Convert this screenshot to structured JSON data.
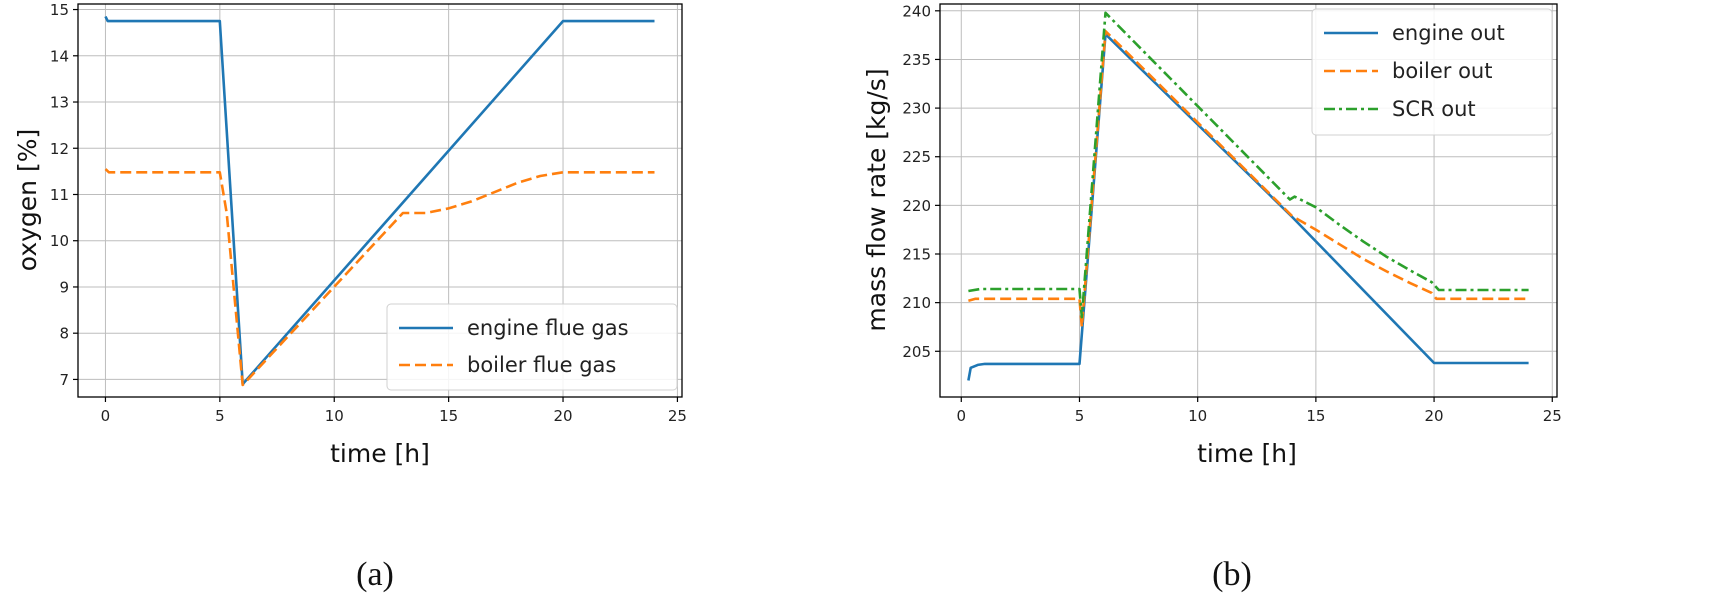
{
  "chart_data": [
    {
      "type": "line",
      "panel_label": "(a)",
      "xlabel": "time [h]",
      "ylabel": "oxygen [%]",
      "xlim": [
        -1.2,
        25.2
      ],
      "ylim": [
        6.62,
        15.12
      ],
      "xticks": [
        0,
        5,
        10,
        15,
        20,
        25
      ],
      "yticks": [
        7,
        8,
        9,
        10,
        11,
        12,
        13,
        14,
        15
      ],
      "grid": true,
      "legend": "lower-right",
      "series": [
        {
          "name": "engine flue gas",
          "style": "solid",
          "color": "#1f77b4",
          "points": [
            [
              0,
              14.85
            ],
            [
              0.1,
              14.75
            ],
            [
              5.0,
              14.75
            ],
            [
              6.0,
              6.9
            ],
            [
              20.0,
              14.75
            ],
            [
              24.0,
              14.75
            ]
          ]
        },
        {
          "name": "boiler flue gas",
          "style": "dashed",
          "color": "#ff7f0e",
          "points": [
            [
              0,
              11.55
            ],
            [
              0.15,
              11.48
            ],
            [
              5.0,
              11.48
            ],
            [
              5.3,
              10.6
            ],
            [
              6.0,
              6.88
            ],
            [
              13.0,
              10.6
            ],
            [
              14.0,
              10.6
            ],
            [
              15.0,
              10.7
            ],
            [
              16.0,
              10.85
            ],
            [
              17.0,
              11.05
            ],
            [
              18.0,
              11.25
            ],
            [
              19.0,
              11.4
            ],
            [
              20.0,
              11.48
            ],
            [
              24.0,
              11.48
            ]
          ]
        }
      ]
    },
    {
      "type": "line",
      "panel_label": "(b)",
      "xlabel": "time [h]",
      "ylabel": "mass flow rate [kg/s]",
      "xlim": [
        -0.9,
        25.2
      ],
      "ylim": [
        200.3,
        240.7
      ],
      "xticks": [
        0,
        5,
        10,
        15,
        20,
        25
      ],
      "yticks": [
        205,
        210,
        215,
        220,
        225,
        230,
        235,
        240
      ],
      "grid": true,
      "legend": "upper-right",
      "series": [
        {
          "name": "engine out",
          "style": "solid",
          "color": "#1f77b4",
          "points": [
            [
              0.3,
              202.0
            ],
            [
              0.4,
              203.3
            ],
            [
              0.7,
              203.6
            ],
            [
              1.0,
              203.7
            ],
            [
              5.0,
              203.7
            ],
            [
              6.1,
              237.6
            ],
            [
              14.0,
              218.8
            ],
            [
              20.0,
              203.8
            ],
            [
              24.0,
              203.8
            ]
          ]
        },
        {
          "name": "boiler out",
          "style": "dashed",
          "color": "#ff7f0e",
          "points": [
            [
              0.3,
              210.2
            ],
            [
              0.6,
              210.4
            ],
            [
              5.0,
              210.4
            ],
            [
              5.1,
              207.5
            ],
            [
              6.1,
              237.9
            ],
            [
              14.0,
              218.9
            ],
            [
              15.0,
              217.5
            ],
            [
              16.0,
              216.0
            ],
            [
              17.0,
              214.5
            ],
            [
              18.0,
              213.2
            ],
            [
              19.0,
              212.0
            ],
            [
              19.9,
              211.0
            ],
            [
              20.1,
              210.4
            ],
            [
              24.0,
              210.4
            ]
          ]
        },
        {
          "name": "SCR out",
          "style": "dashdot",
          "color": "#2ca02c",
          "points": [
            [
              0.3,
              211.2
            ],
            [
              0.8,
              211.4
            ],
            [
              5.0,
              211.4
            ],
            [
              5.1,
              208.5
            ],
            [
              6.1,
              239.8
            ],
            [
              13.9,
              220.6
            ],
            [
              14.1,
              220.9
            ],
            [
              15.0,
              219.8
            ],
            [
              16.0,
              218.0
            ],
            [
              17.0,
              216.3
            ],
            [
              18.0,
              214.7
            ],
            [
              19.0,
              213.3
            ],
            [
              19.9,
              212.1
            ],
            [
              20.2,
              211.3
            ],
            [
              24.0,
              211.3
            ]
          ]
        }
      ]
    }
  ]
}
